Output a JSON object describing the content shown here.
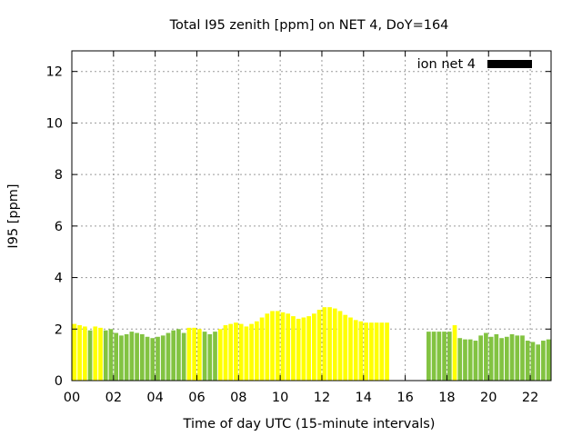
{
  "chart_data": {
    "type": "bar",
    "title": "Total I95 zenith [ppm] on NET 4, DoY=164",
    "xlabel": "Time of day UTC (15-minute intervals)",
    "ylabel": "I95 [ppm]",
    "xlim": [
      0,
      23
    ],
    "ylim": [
      0,
      12.8
    ],
    "x_ticks": [
      "00",
      "02",
      "04",
      "06",
      "08",
      "10",
      "12",
      "14",
      "16",
      "18",
      "20",
      "22"
    ],
    "y_ticks": [
      "0",
      "2",
      "4",
      "6",
      "8",
      "10",
      "12"
    ],
    "grid": true,
    "legend": {
      "position": "top-right",
      "label": "ion net 4",
      "color": "#000000"
    },
    "colors": {
      "green": "#82c341",
      "yellow": "#ffff00"
    },
    "bars": [
      {
        "x": 0.125,
        "v": 2.2,
        "c": "yellow"
      },
      {
        "x": 0.375,
        "v": 2.15,
        "c": "yellow"
      },
      {
        "x": 0.625,
        "v": 2.1,
        "c": "yellow"
      },
      {
        "x": 0.875,
        "v": 1.95,
        "c": "green"
      },
      {
        "x": 1.125,
        "v": 2.1,
        "c": "yellow"
      },
      {
        "x": 1.375,
        "v": 2.05,
        "c": "yellow"
      },
      {
        "x": 1.625,
        "v": 1.95,
        "c": "green"
      },
      {
        "x": 1.875,
        "v": 2.0,
        "c": "green"
      },
      {
        "x": 2.125,
        "v": 1.85,
        "c": "green"
      },
      {
        "x": 2.375,
        "v": 1.75,
        "c": "green"
      },
      {
        "x": 2.625,
        "v": 1.8,
        "c": "green"
      },
      {
        "x": 2.875,
        "v": 1.9,
        "c": "green"
      },
      {
        "x": 3.125,
        "v": 1.85,
        "c": "green"
      },
      {
        "x": 3.375,
        "v": 1.8,
        "c": "green"
      },
      {
        "x": 3.625,
        "v": 1.7,
        "c": "green"
      },
      {
        "x": 3.875,
        "v": 1.65,
        "c": "green"
      },
      {
        "x": 4.125,
        "v": 1.7,
        "c": "green"
      },
      {
        "x": 4.375,
        "v": 1.75,
        "c": "green"
      },
      {
        "x": 4.625,
        "v": 1.85,
        "c": "green"
      },
      {
        "x": 4.875,
        "v": 1.95,
        "c": "green"
      },
      {
        "x": 5.125,
        "v": 2.0,
        "c": "green"
      },
      {
        "x": 5.375,
        "v": 1.85,
        "c": "green"
      },
      {
        "x": 5.625,
        "v": 2.05,
        "c": "yellow"
      },
      {
        "x": 5.875,
        "v": 2.05,
        "c": "yellow"
      },
      {
        "x": 6.125,
        "v": 2.0,
        "c": "yellow"
      },
      {
        "x": 6.375,
        "v": 1.9,
        "c": "green"
      },
      {
        "x": 6.625,
        "v": 1.8,
        "c": "green"
      },
      {
        "x": 6.875,
        "v": 1.9,
        "c": "green"
      },
      {
        "x": 7.125,
        "v": 2.0,
        "c": "yellow"
      },
      {
        "x": 7.375,
        "v": 2.15,
        "c": "yellow"
      },
      {
        "x": 7.625,
        "v": 2.2,
        "c": "yellow"
      },
      {
        "x": 7.875,
        "v": 2.25,
        "c": "yellow"
      },
      {
        "x": 8.125,
        "v": 2.2,
        "c": "yellow"
      },
      {
        "x": 8.375,
        "v": 2.1,
        "c": "yellow"
      },
      {
        "x": 8.625,
        "v": 2.2,
        "c": "yellow"
      },
      {
        "x": 8.875,
        "v": 2.3,
        "c": "yellow"
      },
      {
        "x": 9.125,
        "v": 2.45,
        "c": "yellow"
      },
      {
        "x": 9.375,
        "v": 2.6,
        "c": "yellow"
      },
      {
        "x": 9.625,
        "v": 2.7,
        "c": "yellow"
      },
      {
        "x": 9.875,
        "v": 2.7,
        "c": "yellow"
      },
      {
        "x": 10.125,
        "v": 2.65,
        "c": "yellow"
      },
      {
        "x": 10.375,
        "v": 2.6,
        "c": "yellow"
      },
      {
        "x": 10.625,
        "v": 2.5,
        "c": "yellow"
      },
      {
        "x": 10.875,
        "v": 2.4,
        "c": "yellow"
      },
      {
        "x": 11.125,
        "v": 2.45,
        "c": "yellow"
      },
      {
        "x": 11.375,
        "v": 2.5,
        "c": "yellow"
      },
      {
        "x": 11.625,
        "v": 2.6,
        "c": "yellow"
      },
      {
        "x": 11.875,
        "v": 2.75,
        "c": "yellow"
      },
      {
        "x": 12.125,
        "v": 2.85,
        "c": "yellow"
      },
      {
        "x": 12.375,
        "v": 2.85,
        "c": "yellow"
      },
      {
        "x": 12.625,
        "v": 2.8,
        "c": "yellow"
      },
      {
        "x": 12.875,
        "v": 2.7,
        "c": "yellow"
      },
      {
        "x": 13.125,
        "v": 2.55,
        "c": "yellow"
      },
      {
        "x": 13.375,
        "v": 2.45,
        "c": "yellow"
      },
      {
        "x": 13.625,
        "v": 2.35,
        "c": "yellow"
      },
      {
        "x": 13.875,
        "v": 2.3,
        "c": "yellow"
      },
      {
        "x": 14.125,
        "v": 2.25,
        "c": "yellow"
      },
      {
        "x": 14.375,
        "v": 2.25,
        "c": "yellow"
      },
      {
        "x": 14.625,
        "v": 2.25,
        "c": "yellow"
      },
      {
        "x": 14.875,
        "v": 2.25,
        "c": "yellow"
      },
      {
        "x": 15.125,
        "v": 2.25,
        "c": "yellow"
      },
      {
        "x": 17.125,
        "v": 1.9,
        "c": "green"
      },
      {
        "x": 17.375,
        "v": 1.9,
        "c": "green"
      },
      {
        "x": 17.625,
        "v": 1.9,
        "c": "green"
      },
      {
        "x": 17.875,
        "v": 1.9,
        "c": "green"
      },
      {
        "x": 18.125,
        "v": 1.9,
        "c": "green"
      },
      {
        "x": 18.375,
        "v": 2.15,
        "c": "yellow"
      },
      {
        "x": 18.625,
        "v": 1.65,
        "c": "green"
      },
      {
        "x": 18.875,
        "v": 1.6,
        "c": "green"
      },
      {
        "x": 19.125,
        "v": 1.6,
        "c": "green"
      },
      {
        "x": 19.375,
        "v": 1.55,
        "c": "green"
      },
      {
        "x": 19.625,
        "v": 1.75,
        "c": "green"
      },
      {
        "x": 19.875,
        "v": 1.85,
        "c": "green"
      },
      {
        "x": 20.125,
        "v": 1.7,
        "c": "green"
      },
      {
        "x": 20.375,
        "v": 1.8,
        "c": "green"
      },
      {
        "x": 20.625,
        "v": 1.65,
        "c": "green"
      },
      {
        "x": 20.875,
        "v": 1.7,
        "c": "green"
      },
      {
        "x": 21.125,
        "v": 1.8,
        "c": "green"
      },
      {
        "x": 21.375,
        "v": 1.75,
        "c": "green"
      },
      {
        "x": 21.625,
        "v": 1.75,
        "c": "green"
      },
      {
        "x": 21.875,
        "v": 1.55,
        "c": "green"
      },
      {
        "x": 22.125,
        "v": 1.5,
        "c": "green"
      },
      {
        "x": 22.375,
        "v": 1.4,
        "c": "green"
      },
      {
        "x": 22.625,
        "v": 1.55,
        "c": "green"
      },
      {
        "x": 22.875,
        "v": 1.6,
        "c": "green"
      }
    ]
  }
}
